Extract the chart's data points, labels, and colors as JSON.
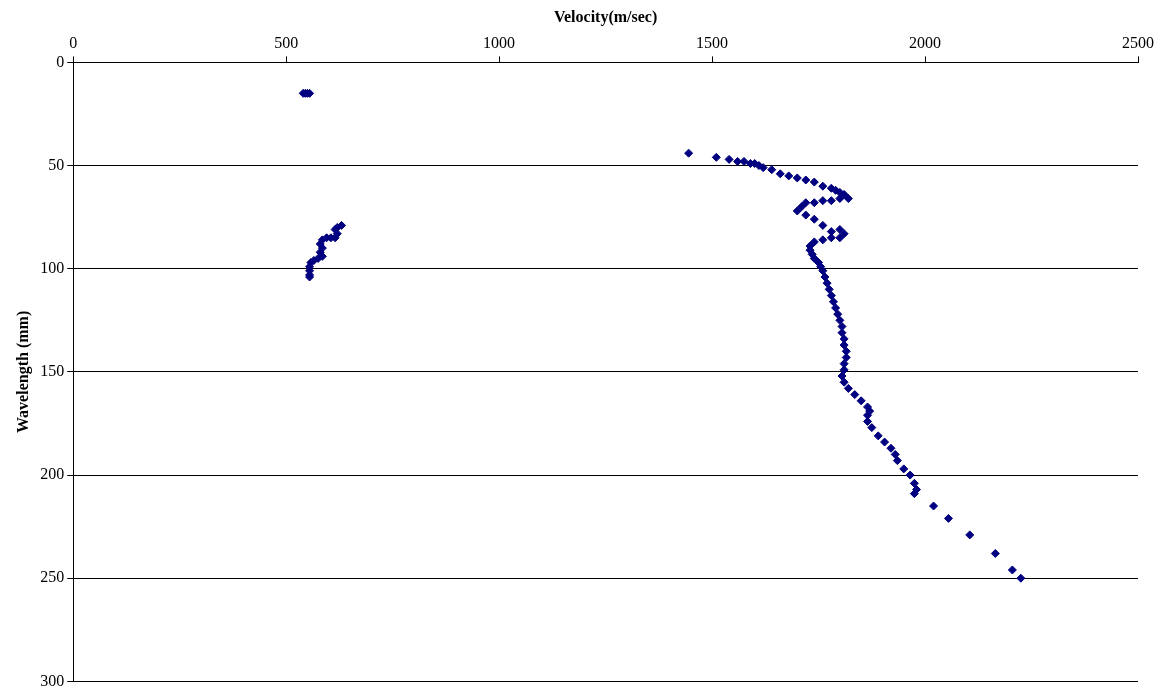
{
  "chart_data": {
    "type": "scatter",
    "xlabel": "Velocity(m/sec)",
    "ylabel": "Wavelength (mm)",
    "xlim": [
      0,
      2500
    ],
    "xticks": [
      0,
      500,
      1000,
      1500,
      2000,
      2500
    ],
    "ylim": [
      300,
      0
    ],
    "yticks": [
      0,
      50,
      100,
      150,
      200,
      250,
      300
    ],
    "grid": "y",
    "legend": false,
    "marker": "diamond",
    "series": [
      {
        "color": "#000080",
        "x": [
          540,
          545,
          550,
          555,
          630,
          620,
          615,
          620,
          615,
          605,
          595,
          585,
          580,
          585,
          580,
          585,
          575,
          565,
          558,
          555,
          555,
          555,
          555,
          1445,
          1510,
          1540,
          1560,
          1575,
          1590,
          1600,
          1610,
          1620,
          1640,
          1660,
          1680,
          1700,
          1720,
          1740,
          1760,
          1780,
          1790,
          1800,
          1810,
          1820,
          1800,
          1780,
          1760,
          1740,
          1720,
          1710,
          1700,
          1720,
          1740,
          1760,
          1780,
          1800,
          1810,
          1800,
          1780,
          1760,
          1740,
          1730,
          1730,
          1735,
          1740,
          1750,
          1755,
          1760,
          1765,
          1770,
          1775,
          1780,
          1785,
          1790,
          1795,
          1800,
          1805,
          1805,
          1810,
          1810,
          1815,
          1815,
          1810,
          1810,
          1805,
          1810,
          1820,
          1835,
          1850,
          1865,
          1870,
          1865,
          1865,
          1875,
          1890,
          1905,
          1920,
          1930,
          1935,
          1950,
          1965,
          1975,
          1980,
          1975,
          2020,
          2055,
          2105,
          2165,
          2205,
          2225
        ],
        "values": [
          15,
          15,
          15,
          15,
          79,
          80,
          81,
          83,
          85,
          85,
          85,
          86,
          88,
          90,
          92,
          94,
          95,
          96,
          97,
          99,
          101,
          103,
          104,
          44,
          46,
          47,
          48,
          48,
          49,
          49,
          50,
          51,
          52,
          54,
          55,
          56,
          57,
          58,
          60,
          61,
          62,
          63,
          64,
          66,
          66,
          67,
          67,
          68,
          68,
          70,
          72,
          74,
          76,
          79,
          82,
          81,
          83,
          85,
          85,
          86,
          87,
          89,
          91,
          93,
          95,
          97,
          99,
          101,
          104,
          107,
          110,
          113,
          116,
          119,
          122,
          125,
          128,
          131,
          134,
          137,
          140,
          143,
          146,
          149,
          152,
          155,
          158,
          161,
          164,
          167,
          169,
          171,
          174,
          177,
          181,
          184,
          187,
          190,
          193,
          197,
          200,
          204,
          207,
          209,
          215,
          221,
          229,
          238,
          246,
          250
        ]
      }
    ]
  }
}
